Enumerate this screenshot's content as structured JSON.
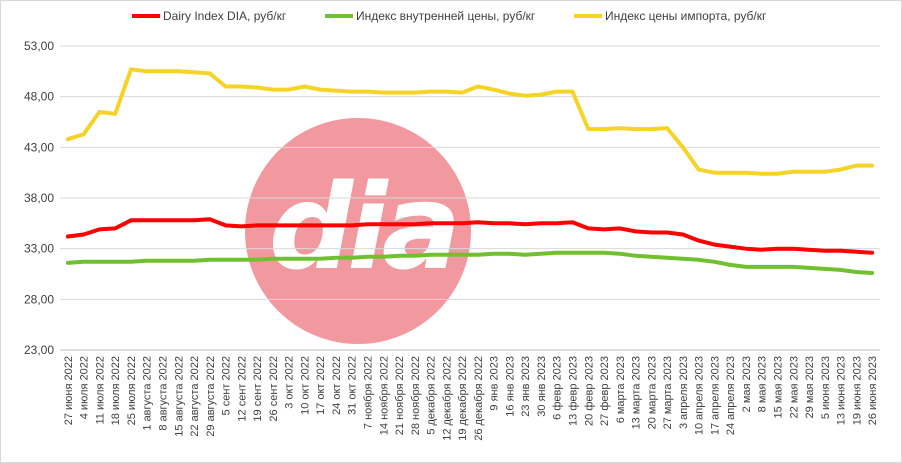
{
  "chart_data": {
    "type": "line",
    "title": "",
    "xlabel": "",
    "ylabel": "",
    "ylim": [
      23,
      53
    ],
    "yticks": [
      "23,00",
      "28,00",
      "33,00",
      "38,00",
      "43,00",
      "48,00",
      "53,00"
    ],
    "ytick_values": [
      23,
      28,
      33,
      38,
      43,
      48,
      53
    ],
    "grid": true,
    "legend_position": "top",
    "categories": [
      "27 июня 2022",
      "4 июля 2022",
      "11 июля 2022",
      "18 июля 2022",
      "25 июля 2022",
      "1 августа 2022",
      "8 августа 2022",
      "15 августа 2022",
      "22 августа 2022",
      "29 августа 2022",
      "5 сент 2022",
      "12 сент 2022",
      "19 сент 2022",
      "26 сент 2022",
      "3 окт 2022",
      "10 окт 2022",
      "17 окт 2022",
      "24 окт 2022",
      "31 окт 2022",
      "7 ноября 2022",
      "14 ноября 2022",
      "21 ноября 2022",
      "28 ноября 2022",
      "5 декабря 2022",
      "12 декабря 2022",
      "19 декабря 2022",
      "26 декабря 2022",
      "9 янв 2023",
      "16 янв 2023",
      "23 янв 2023",
      "30 янв 2023",
      "6 февр 2023",
      "13 февр 2023",
      "20 февр 2023",
      "27 февр 2023",
      "6 марта 2023",
      "13 марта 2023",
      "20 марта 2023",
      "27 марта 2023",
      "3 апреля 2023",
      "10 апреля 2023",
      "17 апреля 2023",
      "24 апреля 2023",
      "2 мая 2023",
      "8 мая 2023",
      "15 мая 2023",
      "22 мая 2023",
      "29 мая 2023",
      "5 июня 2023",
      "13 июня 2023",
      "19 июня 2023",
      "26 июня 2023"
    ],
    "series": [
      {
        "name": "Dairy Index DIA,  руб/кг",
        "color": "#ff0000",
        "values": [
          34.2,
          34.4,
          34.9,
          35.0,
          35.8,
          35.8,
          35.8,
          35.8,
          35.8,
          35.9,
          35.3,
          35.2,
          35.3,
          35.3,
          35.3,
          35.3,
          35.3,
          35.3,
          35.3,
          35.4,
          35.4,
          35.4,
          35.4,
          35.5,
          35.5,
          35.5,
          35.6,
          35.5,
          35.5,
          35.4,
          35.5,
          35.5,
          35.6,
          35.0,
          34.9,
          35.0,
          34.7,
          34.6,
          34.6,
          34.4,
          33.8,
          33.4,
          33.2,
          33.0,
          32.9,
          33.0,
          33.0,
          32.9,
          32.8,
          32.8,
          32.7,
          32.6
        ]
      },
      {
        "name": "Индекс внутренней цены, руб/кг",
        "color": "#70c030",
        "values": [
          31.6,
          31.7,
          31.7,
          31.7,
          31.7,
          31.8,
          31.8,
          31.8,
          31.8,
          31.9,
          31.9,
          31.9,
          31.9,
          32.0,
          32.0,
          32.0,
          32.0,
          32.1,
          32.1,
          32.2,
          32.2,
          32.3,
          32.3,
          32.4,
          32.4,
          32.4,
          32.4,
          32.5,
          32.5,
          32.4,
          32.5,
          32.6,
          32.6,
          32.6,
          32.6,
          32.5,
          32.3,
          32.2,
          32.1,
          32.0,
          31.9,
          31.7,
          31.4,
          31.2,
          31.2,
          31.2,
          31.2,
          31.1,
          31.0,
          30.9,
          30.7,
          30.6
        ]
      },
      {
        "name": "Индекс цены импорта, руб/кг",
        "color": "#f5d327",
        "values": [
          43.8,
          44.3,
          46.5,
          46.3,
          50.7,
          50.5,
          50.5,
          50.5,
          50.4,
          50.3,
          49.0,
          49.0,
          48.9,
          48.7,
          48.7,
          49.0,
          48.7,
          48.6,
          48.5,
          48.5,
          48.4,
          48.4,
          48.4,
          48.5,
          48.5,
          48.4,
          49.0,
          48.7,
          48.3,
          48.1,
          48.2,
          48.5,
          48.5,
          44.8,
          44.8,
          44.9,
          44.8,
          44.8,
          44.9,
          43.0,
          40.8,
          40.5,
          40.5,
          40.5,
          40.4,
          40.4,
          40.6,
          40.6,
          40.6,
          40.8,
          41.2,
          41.2
        ]
      }
    ],
    "background_logo": {
      "text": "dia",
      "color": "#f0949a"
    }
  }
}
